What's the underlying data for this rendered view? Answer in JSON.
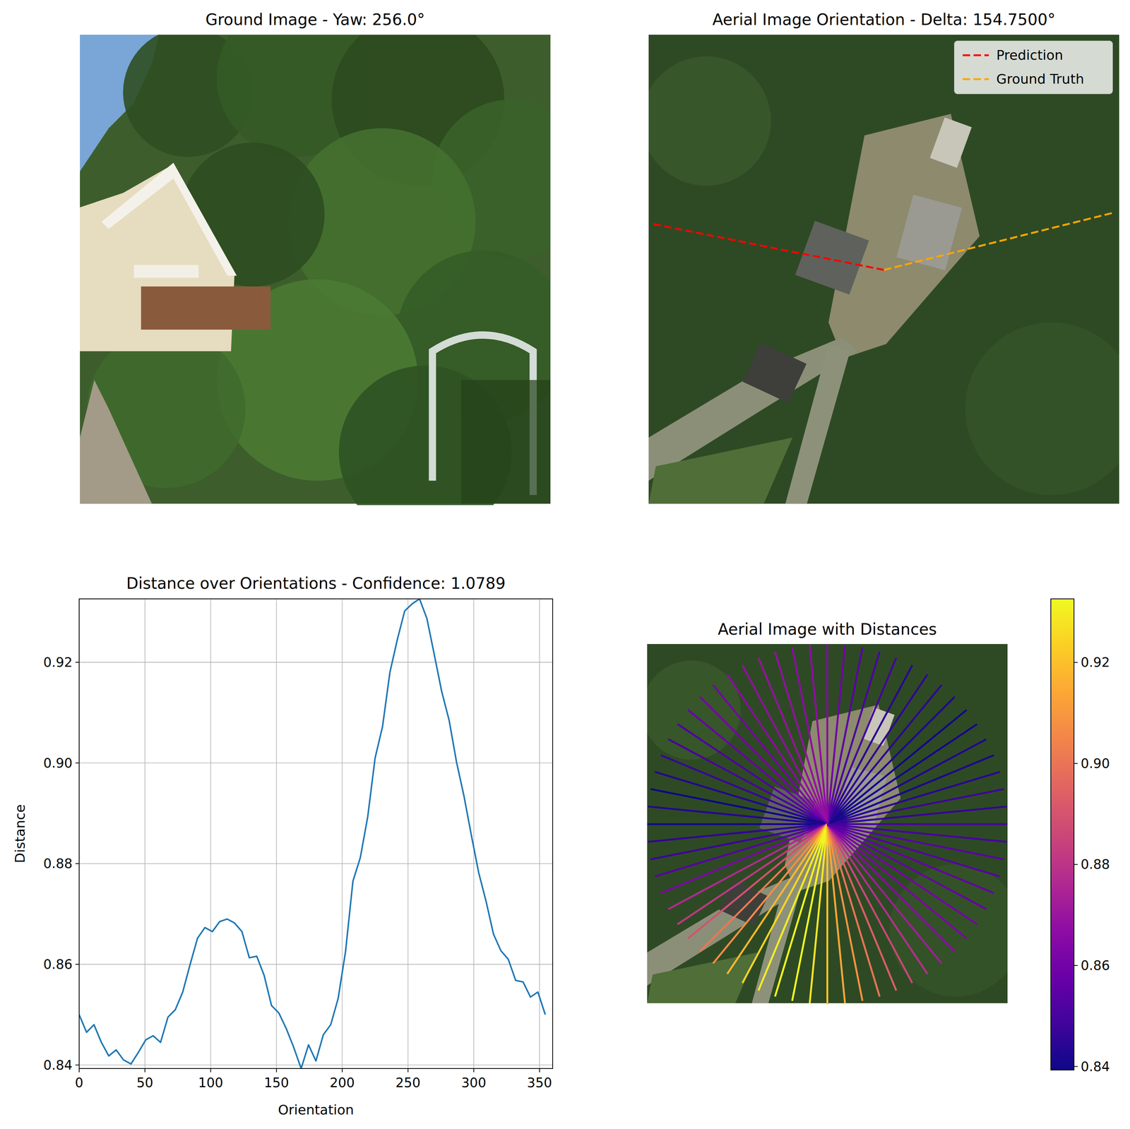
{
  "chart_data": [
    {
      "type": "image",
      "title": "Ground Image - Yaw: 256.0°"
    },
    {
      "type": "image",
      "title": "Aerial Image Orientation - Delta: 154.7500°",
      "legend": "upper right",
      "series": [
        {
          "name": "Prediction",
          "color": "#ff0000",
          "line_style": "dashed",
          "angle": 168.75
        },
        {
          "name": "Ground Truth",
          "color": "#ffa500",
          "line_style": "dashed",
          "angle": 14.0
        }
      ]
    },
    {
      "type": "line",
      "title": "Distance over Orientations - Confidence: 1.0789",
      "x_label": "Orientation",
      "y_label": "Distance",
      "color": "#1f77b4",
      "grid": true,
      "x": [
        0,
        5.625,
        11.25,
        16.875,
        22.5,
        28.125,
        33.75,
        39.375,
        45,
        50.625,
        56.25,
        61.875,
        67.5,
        73.125,
        78.75,
        84.375,
        90,
        95.625,
        101.25,
        106.875,
        112.5,
        118.125,
        123.75,
        129.375,
        135,
        140.625,
        146.25,
        151.875,
        157.5,
        163.125,
        168.75,
        174.375,
        180,
        185.625,
        191.25,
        196.875,
        202.5,
        208.125,
        213.75,
        219.375,
        225,
        230.625,
        236.25,
        241.875,
        247.5,
        253.125,
        258.75,
        264.375,
        270,
        275.625,
        281.25,
        286.875,
        292.5,
        298.125,
        303.75,
        309.375,
        315,
        320.625,
        326.25,
        331.875,
        337.5,
        343.125,
        348.75,
        354.375
      ],
      "values": [
        0.85,
        0.8465,
        0.848,
        0.8445,
        0.8418,
        0.843,
        0.841,
        0.8402,
        0.8425,
        0.845,
        0.8458,
        0.8445,
        0.8495,
        0.851,
        0.8545,
        0.86,
        0.8652,
        0.8673,
        0.8665,
        0.8685,
        0.869,
        0.8682,
        0.8665,
        0.8613,
        0.8616,
        0.8578,
        0.8518,
        0.8503,
        0.8472,
        0.8435,
        0.8393,
        0.844,
        0.8408,
        0.846,
        0.848,
        0.8532,
        0.8625,
        0.8765,
        0.8812,
        0.8893,
        0.901,
        0.9072,
        0.918,
        0.9245,
        0.9302,
        0.9316,
        0.9326,
        0.9287,
        0.9215,
        0.9142,
        0.9085,
        0.9002,
        0.8935,
        0.8857,
        0.8782,
        0.8725,
        0.866,
        0.8627,
        0.861,
        0.8568,
        0.8565,
        0.8535,
        0.8545,
        0.85
      ],
      "xlim": [
        0,
        360
      ],
      "ylim": [
        0.8393,
        0.9326
      ],
      "xticks": [
        0,
        50,
        100,
        150,
        200,
        250,
        300,
        350
      ],
      "yticks": [
        0.84,
        0.86,
        0.88,
        {
          "value": 0.9,
          "label": "0.90"
        },
        0.92
      ]
    },
    {
      "type": "radial",
      "title": "Aerial Image with Distances",
      "colorbar_range": [
        0.8393,
        0.9326
      ],
      "colorbar_ticks": [
        0.84,
        0.86,
        0.88,
        {
          "value": 0.9,
          "label": "0.90"
        },
        0.92
      ]
    }
  ]
}
